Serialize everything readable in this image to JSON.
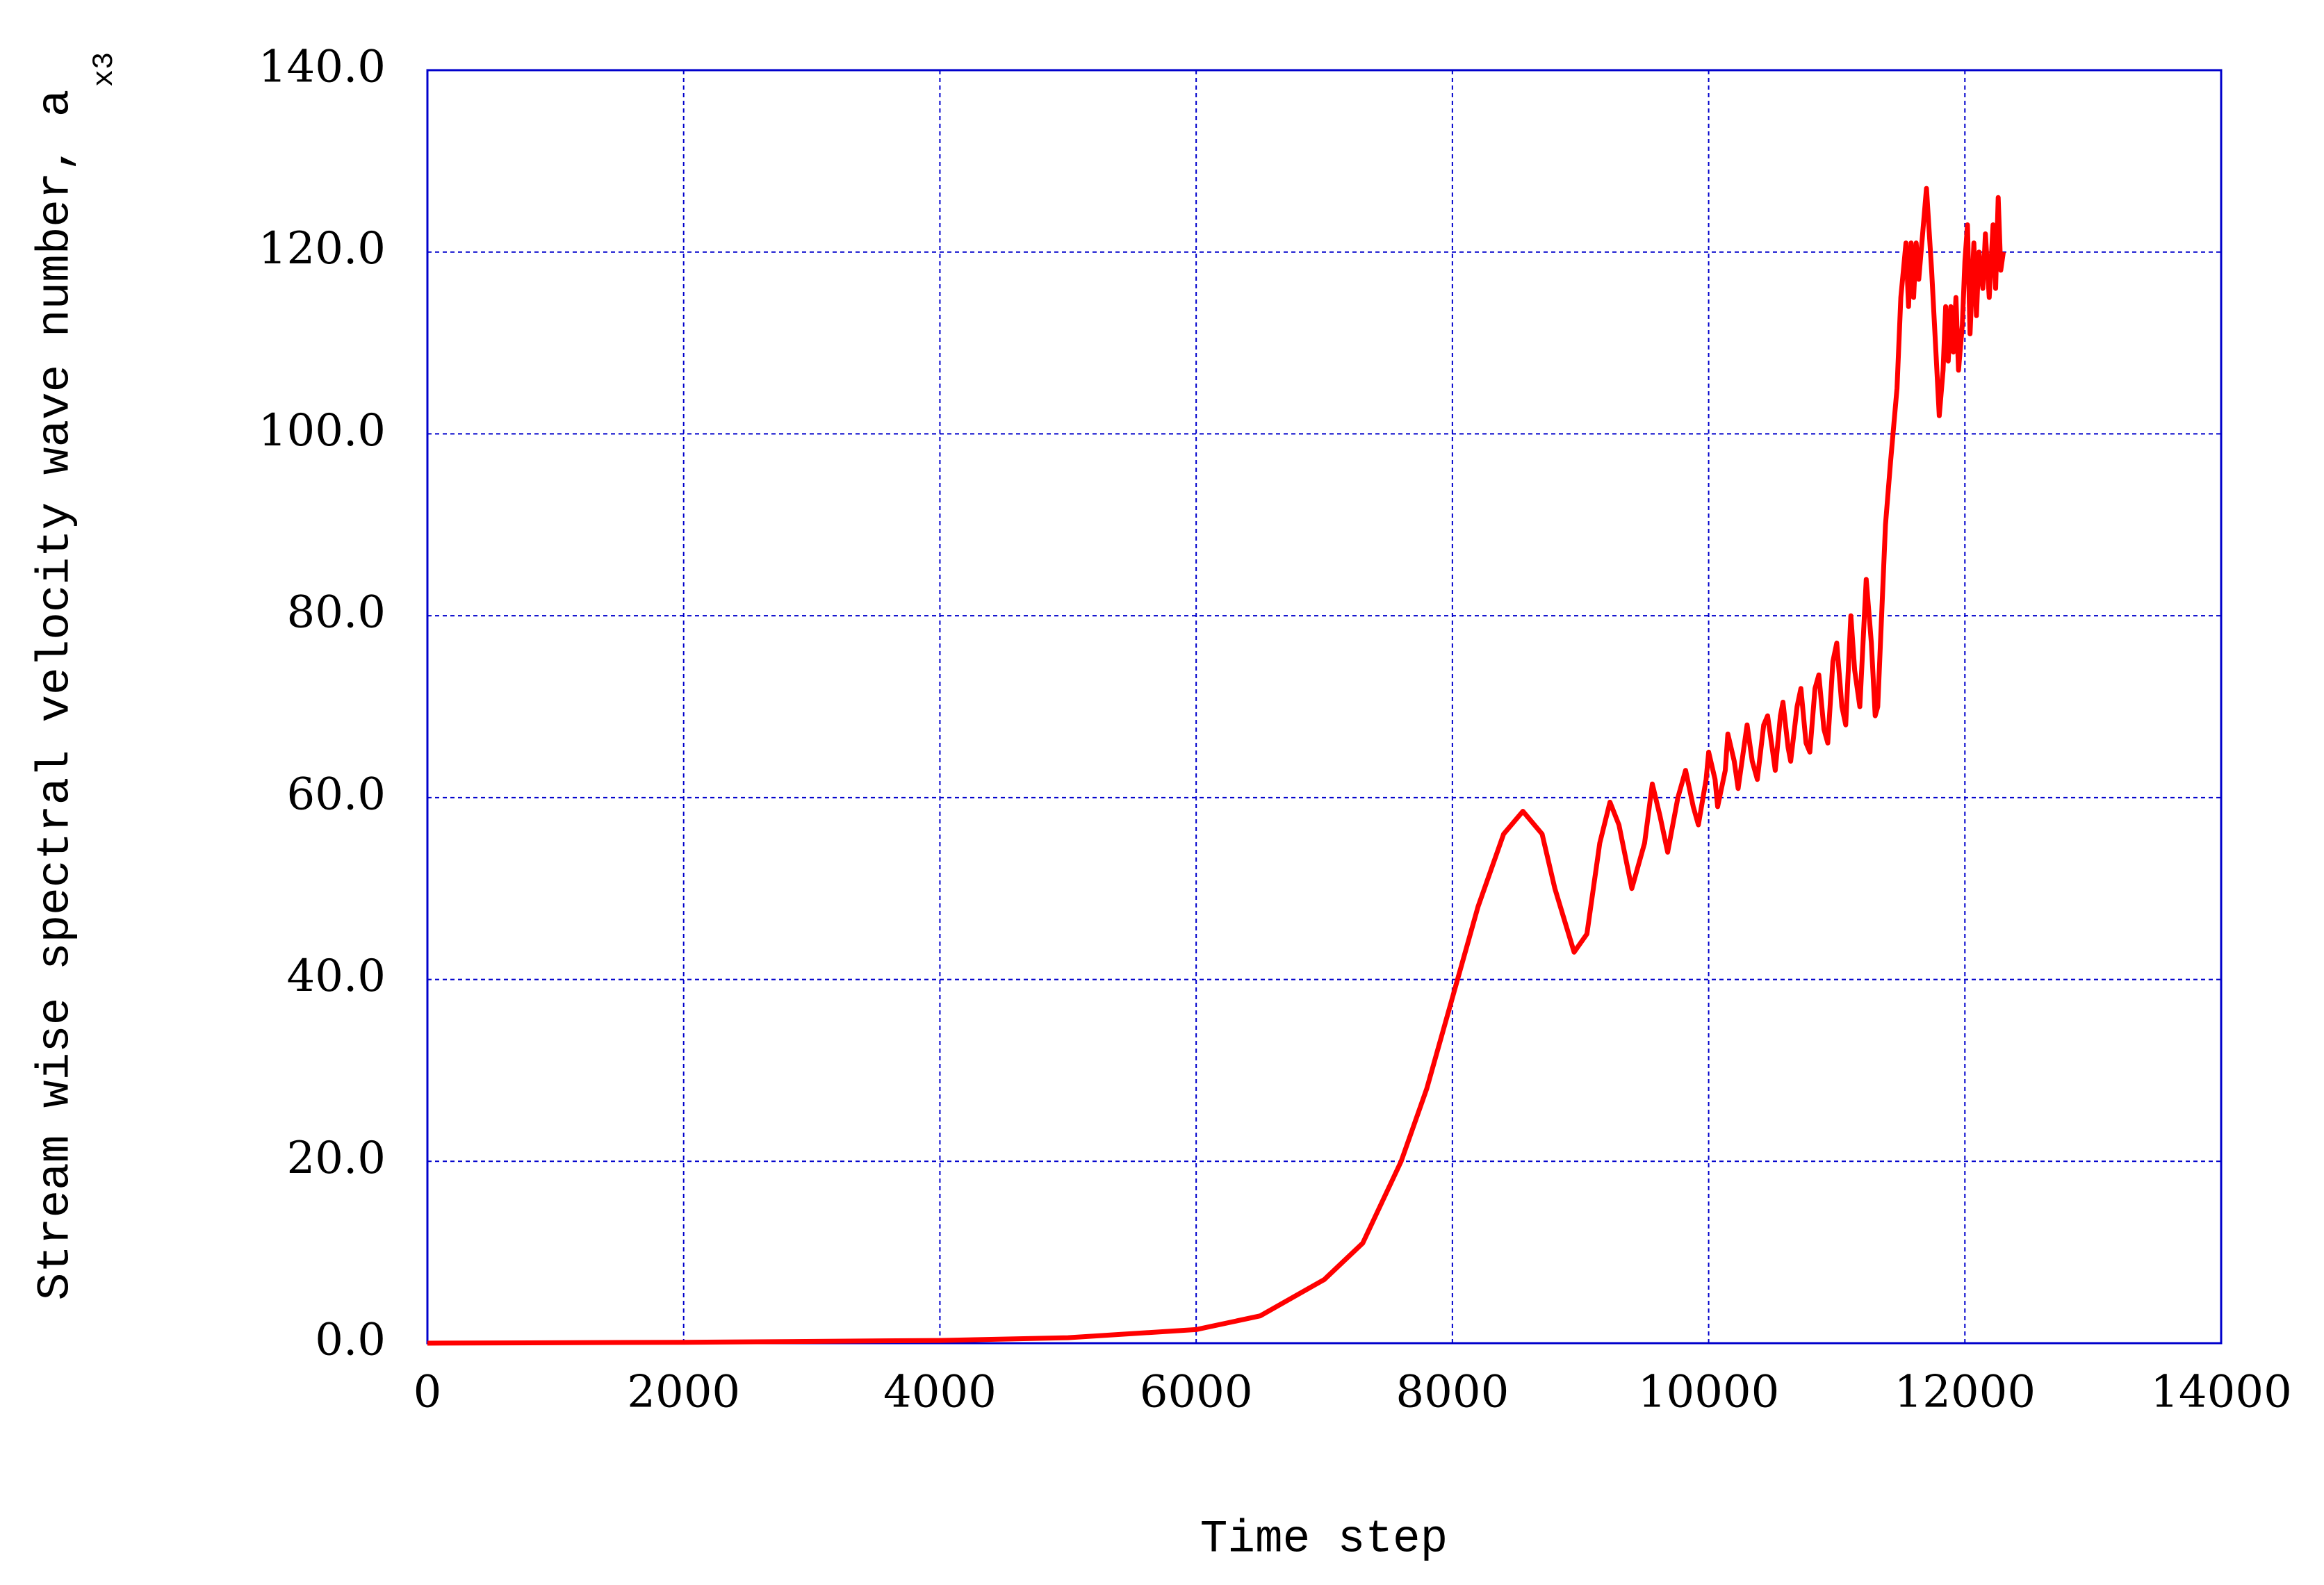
{
  "chart_data": {
    "type": "line",
    "xlabel": "Time step",
    "ylabel": "Stream wise spectral velocity wave number, a",
    "ylabel_subscript": "x3",
    "xlim": [
      0,
      14000
    ],
    "xticks": [
      0,
      2000,
      4000,
      6000,
      8000,
      10000,
      12000,
      14000
    ],
    "ylim": [
      0,
      140
    ],
    "yticks": [
      {
        "value": 0,
        "label": "0.0"
      },
      {
        "value": 20,
        "label": "20.0"
      },
      {
        "value": 40,
        "label": "40.0"
      },
      {
        "value": 60,
        "label": "60.0"
      },
      {
        "value": 80,
        "label": "80.0"
      },
      {
        "value": 100,
        "label": "100.0"
      },
      {
        "value": 120,
        "label": "120.0"
      },
      {
        "value": 140,
        "label": "140.0"
      }
    ],
    "grid": true,
    "series": [
      {
        "color": "#ff0000",
        "x": [
          0,
          2000,
          4000,
          5000,
          6000,
          6500,
          7000,
          7300,
          7600,
          7800,
          8000,
          8200,
          8400,
          8550,
          8700,
          8800,
          8950,
          9050,
          9150,
          9230,
          9300,
          9400,
          9500,
          9560,
          9620,
          9680,
          9760,
          9820,
          9880,
          9920,
          9980,
          10000,
          10050,
          10070,
          10130,
          10150,
          10200,
          10230,
          10280,
          10300,
          10340,
          10380,
          10430,
          10460,
          10500,
          10520,
          10560,
          10580,
          10620,
          10640,
          10690,
          10720,
          10760,
          10790,
          10830,
          10860,
          10900,
          10930,
          10970,
          11000,
          11040,
          11070,
          11110,
          11140,
          11180,
          11230,
          11270,
          11300,
          11320,
          11380,
          11420,
          11470,
          11500,
          11540,
          11560,
          11580,
          11600,
          11620,
          11640,
          11700,
          11740,
          11800,
          11830,
          11850,
          11870,
          11890,
          11910,
          11930,
          11950,
          11980,
          12000,
          12020,
          12040,
          12070,
          12090,
          12110,
          12140,
          12160,
          12190,
          12220,
          12240,
          12260,
          12280,
          12300
        ],
        "values": [
          0,
          0.1,
          0.3,
          0.6,
          1.5,
          3,
          7,
          11,
          20,
          28,
          38,
          48,
          56,
          58.5,
          56,
          50,
          43,
          45,
          55,
          59.5,
          57,
          50,
          55,
          61.5,
          58,
          54,
          60,
          63,
          59,
          57,
          62,
          65,
          62,
          59,
          63,
          67,
          64,
          61,
          66,
          68,
          64,
          62,
          68,
          69,
          65,
          63,
          69,
          70.5,
          65.5,
          64,
          70,
          72,
          66,
          65,
          72,
          73.5,
          67.5,
          66,
          75,
          77,
          70,
          68,
          80,
          74,
          70,
          84,
          77,
          69,
          70,
          90,
          97,
          105,
          115,
          121,
          114,
          121,
          115,
          121,
          117,
          127,
          118,
          102,
          107,
          114,
          108,
          114,
          109,
          115,
          107,
          112,
          119,
          123,
          111,
          121,
          113,
          120,
          116,
          122,
          115,
          123,
          116,
          126,
          118,
          120
        ]
      }
    ]
  }
}
